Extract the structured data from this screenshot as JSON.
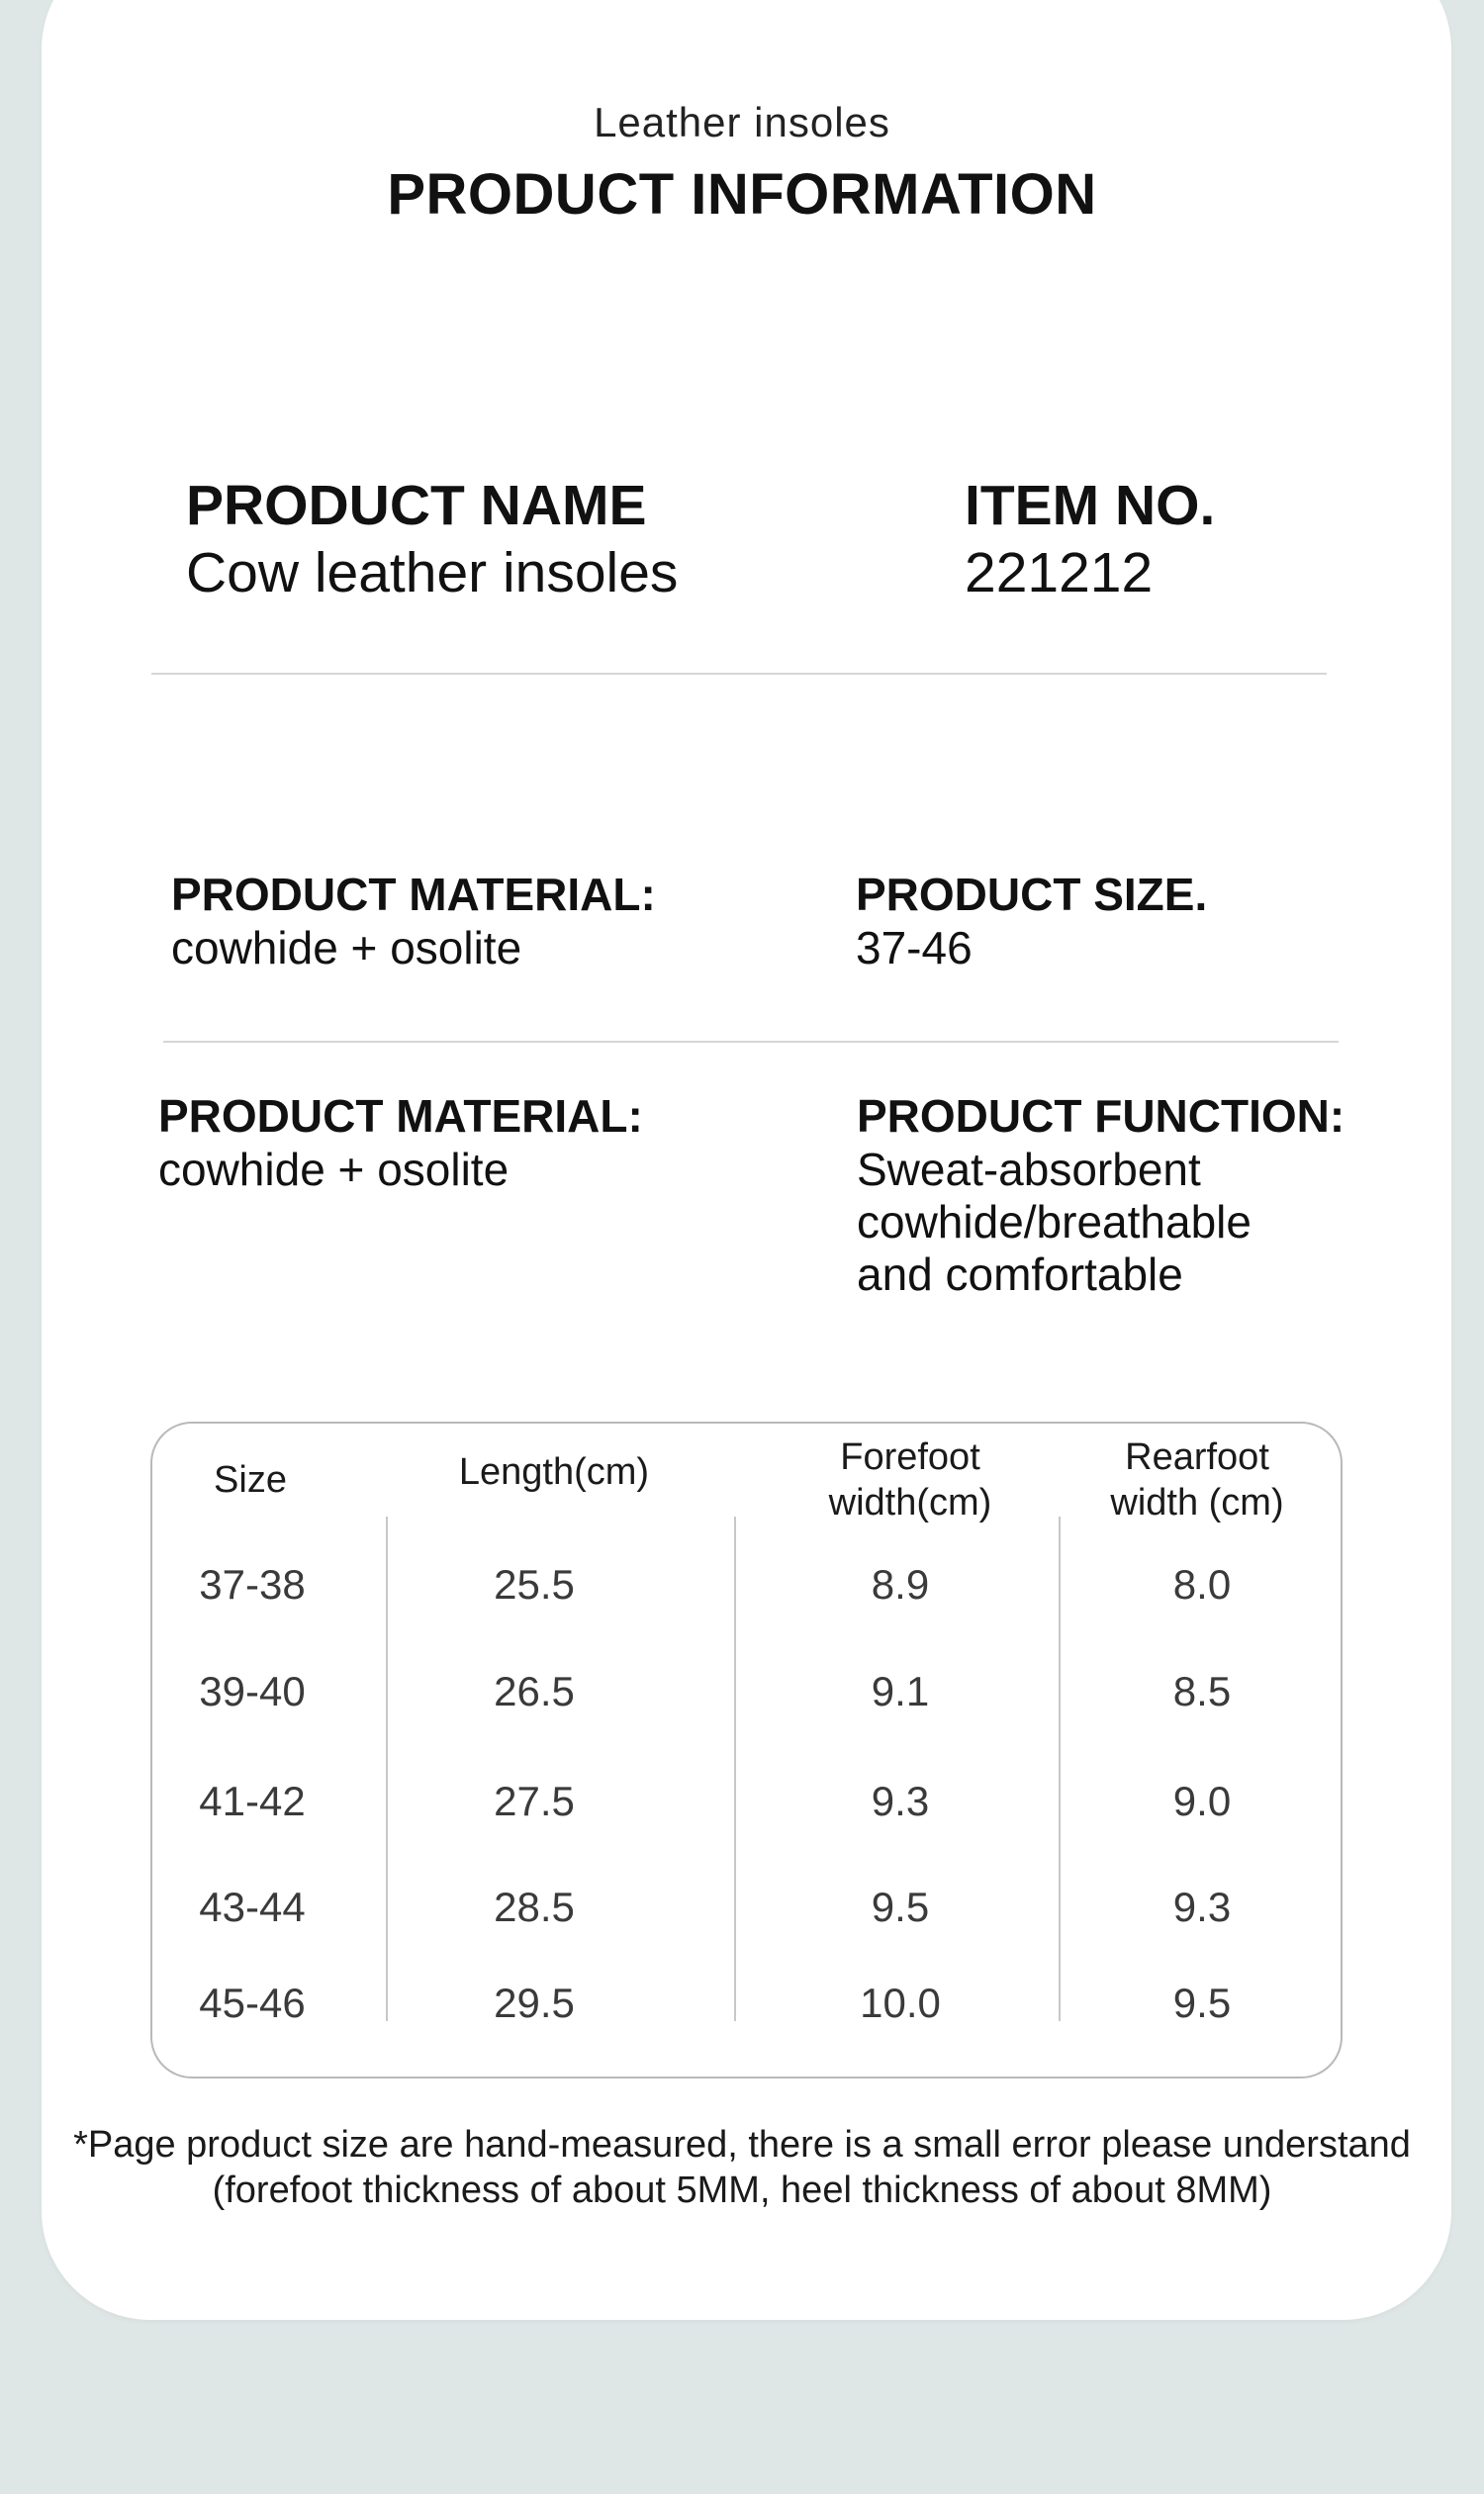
{
  "header": {
    "subtitle": "Leather insoles",
    "title": "PRODUCT INFORMATION"
  },
  "info": {
    "product_name_label": "PRODUCT NAME",
    "product_name_value": "Cow leather insoles",
    "item_no_label": "ITEM NO.",
    "item_no_value": "221212",
    "material1_label": "PRODUCT MATERIAL:",
    "material1_value": "cowhide + osolite",
    "size_label": "PRODUCT SIZE.",
    "size_value": "37-46",
    "material2_label": "PRODUCT MATERIAL:",
    "material2_value": "cowhide + osolite",
    "function_label": "PRODUCT FUNCTION:",
    "function_lines": [
      "Sweat-absorbent",
      "cowhide/breathable",
      "and comfortable"
    ]
  },
  "table": {
    "headers": {
      "size": "Size",
      "length": "Length(cm)",
      "forefoot_1": "Forefoot",
      "forefoot_2": "width(cm)",
      "rearfoot_1": "Rearfoot",
      "rearfoot_2": "width (cm)"
    },
    "rows": [
      [
        "37-38",
        "25.5",
        "8.9",
        "8.0"
      ],
      [
        "39-40",
        "26.5",
        "9.1",
        "8.5"
      ],
      [
        "41-42",
        "27.5",
        "9.3",
        "9.0"
      ],
      [
        "43-44",
        "28.5",
        "9.5",
        "9.3"
      ],
      [
        "45-46",
        "29.5",
        "10.0",
        "9.5"
      ]
    ]
  },
  "note": {
    "line1": "*Page product size are hand-measured, there is a small error please understand",
    "line2": "(forefoot thickness of about 5MM, heel thickness of about 8MM)"
  },
  "colors": {
    "background": "#dfe6e6",
    "card": "#ffffff",
    "text": "#111111",
    "table_text": "#3a3a3a",
    "divider": "#d6d6d6"
  }
}
